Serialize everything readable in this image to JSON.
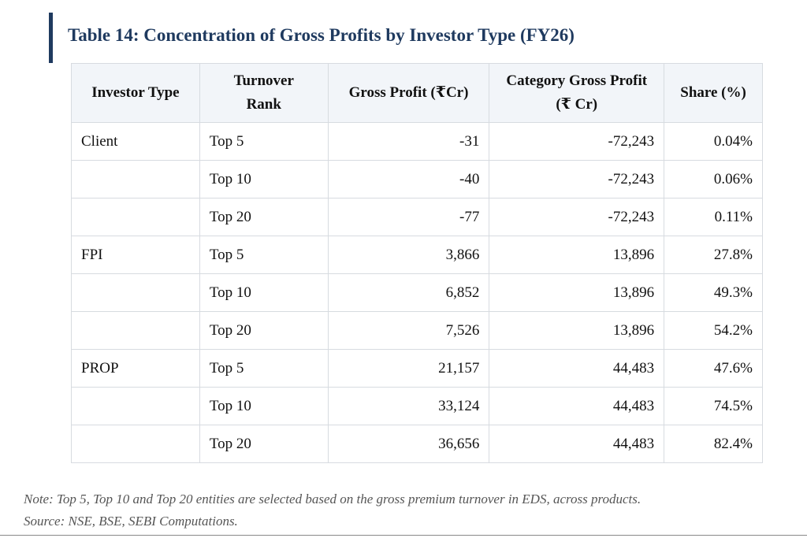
{
  "title": "Table 14: Concentration of Gross Profits by Investor Type (FY26)",
  "colors": {
    "title": "#1f3a5f",
    "header_bg": "#f2f5f9",
    "border": "#d7dbe0"
  },
  "table": {
    "headers": {
      "investor_type": "Investor Type",
      "turnover_rank_1": "Turnover",
      "turnover_rank_2": "Rank",
      "gross_profit": "Gross Profit (₹Cr)",
      "category_gp_1": "Category Gross Profit",
      "category_gp_2": "(₹ Cr)",
      "share": "Share (%)"
    },
    "rows": [
      {
        "investor_type": "Client",
        "rank": "Top 5",
        "gross_profit": "-31",
        "category_gross_profit": "-72,243",
        "share": "0.04%"
      },
      {
        "investor_type": "",
        "rank": "Top 10",
        "gross_profit": "-40",
        "category_gross_profit": "-72,243",
        "share": "0.06%"
      },
      {
        "investor_type": "",
        "rank": "Top 20",
        "gross_profit": "-77",
        "category_gross_profit": "-72,243",
        "share": "0.11%"
      },
      {
        "investor_type": "FPI",
        "rank": "Top 5",
        "gross_profit": "3,866",
        "category_gross_profit": "13,896",
        "share": "27.8%"
      },
      {
        "investor_type": "",
        "rank": "Top 10",
        "gross_profit": "6,852",
        "category_gross_profit": "13,896",
        "share": "49.3%"
      },
      {
        "investor_type": "",
        "rank": "Top 20",
        "gross_profit": "7,526",
        "category_gross_profit": "13,896",
        "share": "54.2%"
      },
      {
        "investor_type": "PROP",
        "rank": "Top 5",
        "gross_profit": "21,157",
        "category_gross_profit": "44,483",
        "share": "47.6%"
      },
      {
        "investor_type": "",
        "rank": "Top 10",
        "gross_profit": "33,124",
        "category_gross_profit": "44,483",
        "share": "74.5%"
      },
      {
        "investor_type": "",
        "rank": "Top 20",
        "gross_profit": "36,656",
        "category_gross_profit": "44,483",
        "share": "82.4%"
      }
    ]
  },
  "note": "Note: Top 5, Top 10 and Top 20 entities are selected based on the gross premium turnover in EDS, across products.",
  "source": "Source: NSE, BSE, SEBI Computations."
}
